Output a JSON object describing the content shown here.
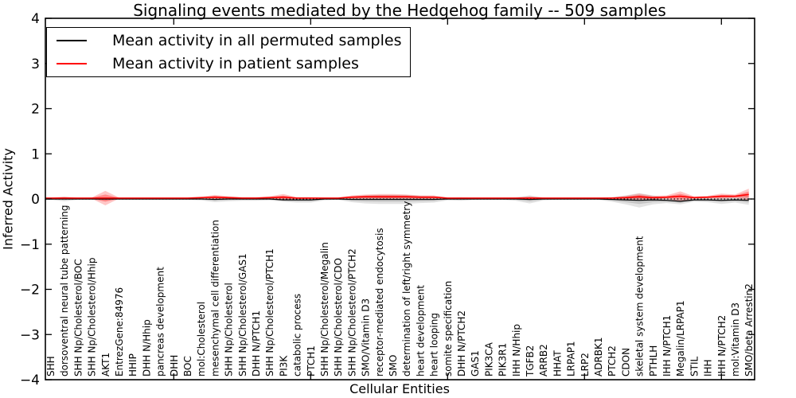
{
  "chart_data": {
    "type": "line",
    "title": "Signaling events mediated by the Hedgehog family -- 509 samples",
    "xlabel": "Cellular Entities",
    "ylabel": "Inferred Activity",
    "ylim": [
      -4,
      4
    ],
    "ytick_labels": [
      "4",
      "3",
      "2",
      "1",
      "0",
      "−1",
      "−2",
      "−3",
      "−4"
    ],
    "yticks": [
      4,
      3,
      2,
      1,
      0,
      -1,
      -2,
      -3,
      -4
    ],
    "xticks_at_category_number": [
      10,
      20,
      30,
      40,
      50
    ],
    "grid": false,
    "zero_reference_line": 0,
    "legend": {
      "position": "upper left",
      "entries": [
        {
          "label": "Mean activity in all permuted samples",
          "color": "#000000"
        },
        {
          "label": "Mean activity in patient samples",
          "color": "#ff0000"
        }
      ]
    },
    "colors": {
      "permuted_line": "#000000",
      "patient_line": "#ff0000",
      "permuted_band": "#808080",
      "patient_band": "#ff0000",
      "zero_line": "#000000"
    },
    "categories": [
      "SHH",
      "dorsoventral neural tube patterning",
      "SHH Np/Cholesterol/BOC",
      "SHH Np/Cholesterol/Hhip",
      "AKT1",
      "EntrezGene:84976",
      "HHIP",
      "DHH N/Hhip",
      "pancreas development",
      "DHH",
      "BOC",
      "mol:Cholesterol",
      "mesenchymal cell differentiation",
      "SHH Np/Cholesterol",
      "SHH Np/Cholesterol/GAS1",
      "DHH N/PTCH1",
      "SHH Np/Cholesterol/PTCH1",
      "PI3K",
      "catabolic process",
      "PTCH1",
      "SHH Np/Cholesterol/Megalin",
      "SHH Np/Cholesterol/CDO",
      "SHH Np/Cholesterol/PTCH2",
      "SMO/Vitamin D3",
      "receptor-mediated endocytosis",
      "SMO",
      "determination of left/right symmetry",
      "heart development",
      "heart looping",
      "somite specification",
      "DHH N/PTCH2",
      "GAS1",
      "PIK3CA",
      "PIK3R1",
      "IHH N/Hhip",
      "TGFB2",
      "ARRB2",
      "HHAT",
      "LRPAP1",
      "LRP2",
      "ADRBK1",
      "PTCH2",
      "CDON",
      "skeletal system development",
      "PTHLH",
      "IHH N/PTCH1",
      "Megalin/LRPAP1",
      "STIL",
      "IHH",
      "IHH N/PTCH2",
      "mol:Vitamin D3",
      "SMO/beta Arrestin2"
    ],
    "series": [
      {
        "name": "Mean activity in all permuted samples",
        "color": "#000000",
        "values": [
          0,
          0,
          0,
          0,
          0,
          0,
          0,
          0,
          0,
          0,
          0,
          0,
          -0.01,
          0,
          0,
          0,
          0,
          -0.02,
          -0.02,
          -0.02,
          0,
          0,
          -0.01,
          -0.01,
          -0.01,
          -0.01,
          -0.01,
          -0.01,
          -0.01,
          0,
          0,
          0,
          0,
          0,
          0,
          -0.01,
          0,
          0,
          0,
          0,
          0,
          -0.01,
          -0.02,
          -0.03,
          -0.02,
          -0.03,
          -0.05,
          -0.02,
          -0.02,
          -0.03,
          -0.02,
          -0.03
        ],
        "band_halfwidth": [
          0.02,
          0.05,
          0.02,
          0.02,
          0.03,
          0.02,
          0.02,
          0.02,
          0.02,
          0.02,
          0.02,
          0.03,
          0.06,
          0.05,
          0.04,
          0.04,
          0.03,
          0.04,
          0.06,
          0.06,
          0.03,
          0.02,
          0.06,
          0.09,
          0.1,
          0.1,
          0.1,
          0.08,
          0.07,
          0.03,
          0.04,
          0.02,
          0.02,
          0.02,
          0.04,
          0.09,
          0.03,
          0.02,
          0.02,
          0.02,
          0.02,
          0.05,
          0.1,
          0.16,
          0.1,
          0.06,
          0.07,
          0.04,
          0.05,
          0.08,
          0.06,
          0.1
        ]
      },
      {
        "name": "Mean activity in patient samples",
        "color": "#ff0000",
        "values": [
          0.02,
          0.02,
          0.02,
          0.02,
          0.02,
          0.02,
          0.02,
          0.02,
          0.02,
          0.02,
          0.02,
          0.03,
          0.04,
          0.03,
          0.02,
          0.02,
          0.03,
          0.04,
          0.02,
          0.02,
          0.02,
          0.02,
          0.04,
          0.05,
          0.05,
          0.05,
          0.05,
          0.04,
          0.04,
          0.02,
          0.02,
          0.02,
          0.02,
          0.02,
          0.02,
          0.02,
          0.02,
          0.02,
          0.02,
          0.02,
          0.02,
          0.02,
          0.03,
          0.05,
          0.03,
          0.04,
          0.06,
          0.03,
          0.04,
          0.06,
          0.06,
          0.1
        ],
        "band_halfwidth": [
          0.012,
          0.03,
          0.012,
          0.012,
          0.16,
          0.012,
          0.012,
          0.012,
          0.012,
          0.012,
          0.012,
          0.02,
          0.05,
          0.03,
          0.02,
          0.02,
          0.03,
          0.07,
          0.02,
          0.02,
          0.012,
          0.012,
          0.04,
          0.05,
          0.06,
          0.06,
          0.05,
          0.04,
          0.04,
          0.012,
          0.012,
          0.012,
          0.012,
          0.012,
          0.012,
          0.04,
          0.012,
          0.012,
          0.012,
          0.012,
          0.012,
          0.02,
          0.04,
          0.07,
          0.04,
          0.04,
          0.11,
          0.03,
          0.03,
          0.06,
          0.04,
          0.13
        ]
      }
    ]
  }
}
